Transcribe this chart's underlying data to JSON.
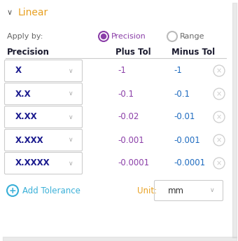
{
  "title": "Linear",
  "apply_by_label": "Apply by:",
  "precision_radio_label": "Precision",
  "range_radio_label": "Range",
  "table_headers": [
    "Precision",
    "Plus Tol",
    "Minus Tol"
  ],
  "rows": [
    {
      "precision": "X",
      "plus": "-1",
      "minus": "-1"
    },
    {
      "precision": "X.X",
      "plus": "-0.1",
      "minus": "-0.1"
    },
    {
      "precision": "X.XX",
      "plus": "-0.02",
      "minus": "-0.01"
    },
    {
      "precision": "X.XXX",
      "plus": "-0.001",
      "minus": "-0.001"
    },
    {
      "precision": "X.XXXX",
      "plus": "-0.0001",
      "minus": "-0.0001"
    }
  ],
  "add_tolerance_label": "Add Tolerance",
  "unit_label": "Unit:",
  "unit_value": "mm",
  "bg_color": "#ffffff",
  "border_color": "#cccccc",
  "title_color": "#e8a020",
  "header_color": "#1a1a2e",
  "precision_text_color": "#1a1a8e",
  "plus_tol_color": "#8b3fa8",
  "minus_tol_color": "#1e6bc0",
  "add_tol_color": "#3ab0d8",
  "unit_label_color": "#e8a020",
  "radio_selected_color": "#8b3fa8",
  "radio_unselected_color": "#bbbbbb",
  "dropdown_arrow_color": "#aaaaaa",
  "x_icon_color": "#cccccc",
  "shadow_color": "#cccccc",
  "chevron_color": "#555555",
  "fig_width": 3.4,
  "fig_height": 3.44,
  "dpi": 100
}
